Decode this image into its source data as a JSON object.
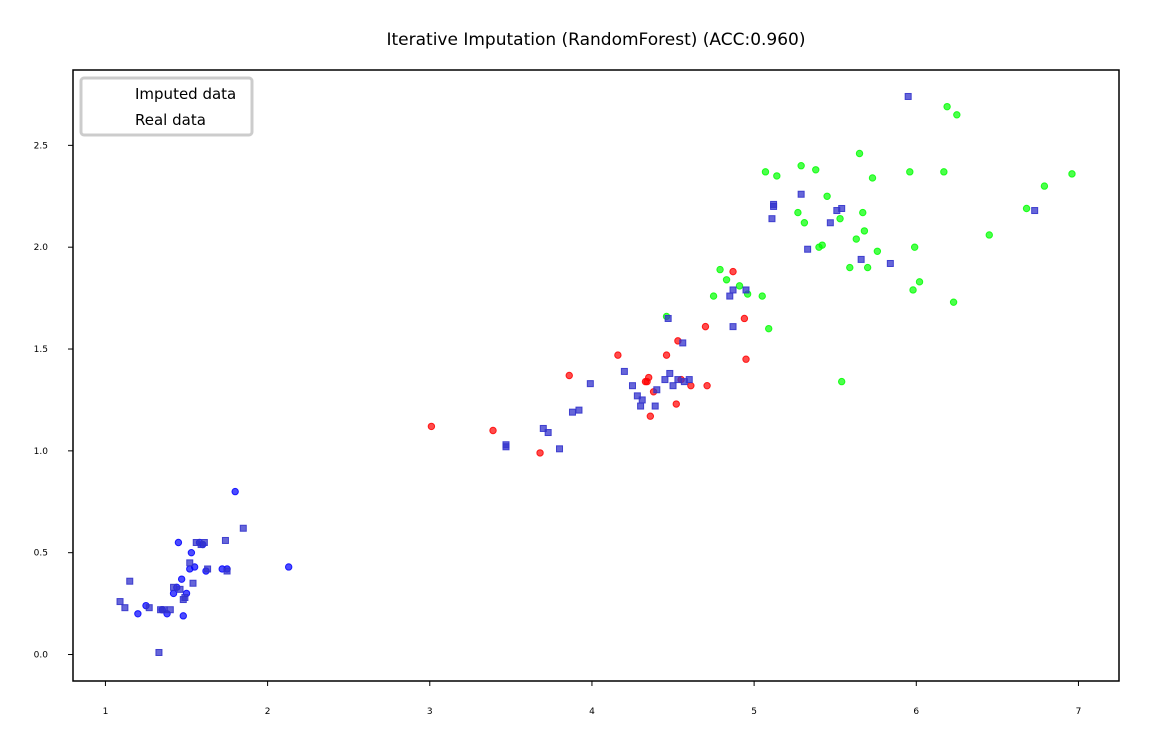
{
  "chart_data": {
    "type": "scatter",
    "title": "Iterative Imputation (RandomForest) (ACC:0.960)",
    "xlabel": "",
    "ylabel": "",
    "xlim": [
      0.8,
      7.25
    ],
    "ylim": [
      -0.13,
      2.87
    ],
    "x_ticks": [
      1,
      2,
      3,
      4,
      5,
      6,
      7
    ],
    "y_ticks": [
      0.0,
      0.5,
      1.0,
      1.5,
      2.0,
      2.5
    ],
    "x_tick_labels": [
      "1",
      "2",
      "3",
      "4",
      "5",
      "6",
      "7"
    ],
    "y_tick_labels": [
      "0.0",
      "0.5",
      "1.0",
      "1.5",
      "2.0",
      "2.5"
    ],
    "grid": false,
    "legend": {
      "position": "top-left",
      "entries": [
        "Imputed data",
        "Real data"
      ]
    },
    "colors": {
      "class0": "#0000ff",
      "class1": "#ff0000",
      "class2": "#00ff00",
      "imputed": "#3333cc"
    },
    "series": [
      {
        "group": "class-0 real",
        "marker": "circle",
        "color": "#0000ff",
        "points": [
          [
            1.2,
            0.2
          ],
          [
            1.25,
            0.24
          ],
          [
            1.38,
            0.2
          ],
          [
            1.42,
            0.3
          ],
          [
            1.45,
            0.55
          ],
          [
            1.48,
            0.19
          ],
          [
            1.5,
            0.3
          ],
          [
            1.52,
            0.42
          ],
          [
            1.55,
            0.43
          ],
          [
            1.58,
            0.55
          ],
          [
            1.62,
            0.41
          ],
          [
            1.72,
            0.42
          ],
          [
            1.8,
            0.8
          ],
          [
            2.13,
            0.43
          ],
          [
            1.35,
            0.22
          ],
          [
            1.44,
            0.33
          ],
          [
            1.47,
            0.37
          ],
          [
            1.53,
            0.5
          ],
          [
            1.6,
            0.54
          ],
          [
            1.75,
            0.42
          ]
        ]
      },
      {
        "group": "class-1 real",
        "marker": "circle",
        "color": "#ff0000",
        "points": [
          [
            3.01,
            1.12
          ],
          [
            3.39,
            1.1
          ],
          [
            3.68,
            0.99
          ],
          [
            3.86,
            1.37
          ],
          [
            4.16,
            1.47
          ],
          [
            4.33,
            1.34
          ],
          [
            4.35,
            1.36
          ],
          [
            4.36,
            1.17
          ],
          [
            4.38,
            1.29
          ],
          [
            4.46,
            1.47
          ],
          [
            4.52,
            1.23
          ],
          [
            4.53,
            1.54
          ],
          [
            4.55,
            1.35
          ],
          [
            4.61,
            1.32
          ],
          [
            4.7,
            1.61
          ],
          [
            4.71,
            1.32
          ],
          [
            4.87,
            1.88
          ],
          [
            4.94,
            1.65
          ],
          [
            4.95,
            1.45
          ],
          [
            4.34,
            1.34
          ]
        ]
      },
      {
        "group": "class-2 real",
        "marker": "circle",
        "color": "#00ff00",
        "points": [
          [
            4.46,
            1.66
          ],
          [
            4.75,
            1.76
          ],
          [
            4.79,
            1.89
          ],
          [
            4.83,
            1.84
          ],
          [
            4.91,
            1.81
          ],
          [
            4.96,
            1.77
          ],
          [
            5.05,
            1.76
          ],
          [
            5.07,
            2.37
          ],
          [
            5.09,
            1.6
          ],
          [
            5.14,
            2.35
          ],
          [
            5.27,
            2.17
          ],
          [
            5.29,
            2.4
          ],
          [
            5.31,
            2.12
          ],
          [
            5.38,
            2.38
          ],
          [
            5.4,
            2.0
          ],
          [
            5.42,
            2.01
          ],
          [
            5.45,
            2.25
          ],
          [
            5.53,
            2.14
          ],
          [
            5.54,
            1.34
          ],
          [
            5.59,
            1.9
          ],
          [
            5.63,
            2.04
          ],
          [
            5.65,
            2.46
          ],
          [
            5.67,
            2.17
          ],
          [
            5.68,
            2.08
          ],
          [
            5.7,
            1.9
          ],
          [
            5.73,
            2.34
          ],
          [
            5.76,
            1.98
          ],
          [
            5.96,
            2.37
          ],
          [
            5.98,
            1.79
          ],
          [
            5.99,
            2.0
          ],
          [
            6.02,
            1.83
          ],
          [
            6.17,
            2.37
          ],
          [
            6.19,
            2.69
          ],
          [
            6.23,
            1.73
          ],
          [
            6.25,
            2.65
          ],
          [
            6.45,
            2.06
          ],
          [
            6.68,
            2.19
          ],
          [
            6.79,
            2.3
          ],
          [
            6.96,
            2.36
          ]
        ]
      },
      {
        "group": "imputed",
        "marker": "square",
        "color": "#3333cc",
        "points": [
          [
            1.09,
            0.26
          ],
          [
            1.12,
            0.23
          ],
          [
            1.15,
            0.36
          ],
          [
            1.27,
            0.23
          ],
          [
            1.33,
            0.01
          ],
          [
            1.34,
            0.22
          ],
          [
            1.36,
            0.22
          ],
          [
            1.4,
            0.22
          ],
          [
            1.42,
            0.33
          ],
          [
            1.46,
            0.32
          ],
          [
            1.48,
            0.27
          ],
          [
            1.49,
            0.28
          ],
          [
            1.52,
            0.45
          ],
          [
            1.54,
            0.35
          ],
          [
            1.56,
            0.55
          ],
          [
            1.59,
            0.54
          ],
          [
            1.61,
            0.55
          ],
          [
            1.63,
            0.42
          ],
          [
            1.74,
            0.56
          ],
          [
            1.75,
            0.41
          ],
          [
            1.85,
            0.62
          ],
          [
            3.47,
            1.03
          ],
          [
            3.47,
            1.02
          ],
          [
            3.7,
            1.11
          ],
          [
            3.73,
            1.09
          ],
          [
            3.8,
            1.01
          ],
          [
            3.88,
            1.19
          ],
          [
            3.92,
            1.2
          ],
          [
            3.99,
            1.33
          ],
          [
            4.2,
            1.39
          ],
          [
            4.25,
            1.32
          ],
          [
            4.28,
            1.27
          ],
          [
            4.3,
            1.22
          ],
          [
            4.31,
            1.25
          ],
          [
            4.39,
            1.22
          ],
          [
            4.4,
            1.3
          ],
          [
            4.45,
            1.35
          ],
          [
            4.47,
            1.65
          ],
          [
            4.48,
            1.38
          ],
          [
            4.5,
            1.32
          ],
          [
            4.53,
            1.35
          ],
          [
            4.56,
            1.53
          ],
          [
            4.57,
            1.34
          ],
          [
            4.6,
            1.35
          ],
          [
            4.85,
            1.76
          ],
          [
            4.87,
            1.79
          ],
          [
            4.87,
            1.61
          ],
          [
            4.95,
            1.79
          ],
          [
            5.11,
            2.14
          ],
          [
            5.12,
            2.21
          ],
          [
            5.12,
            2.2
          ],
          [
            5.29,
            2.26
          ],
          [
            5.33,
            1.99
          ],
          [
            5.47,
            2.12
          ],
          [
            5.51,
            2.18
          ],
          [
            5.54,
            2.19
          ],
          [
            5.66,
            1.94
          ],
          [
            5.84,
            1.92
          ],
          [
            5.95,
            2.74
          ],
          [
            6.73,
            2.18
          ]
        ]
      }
    ]
  }
}
